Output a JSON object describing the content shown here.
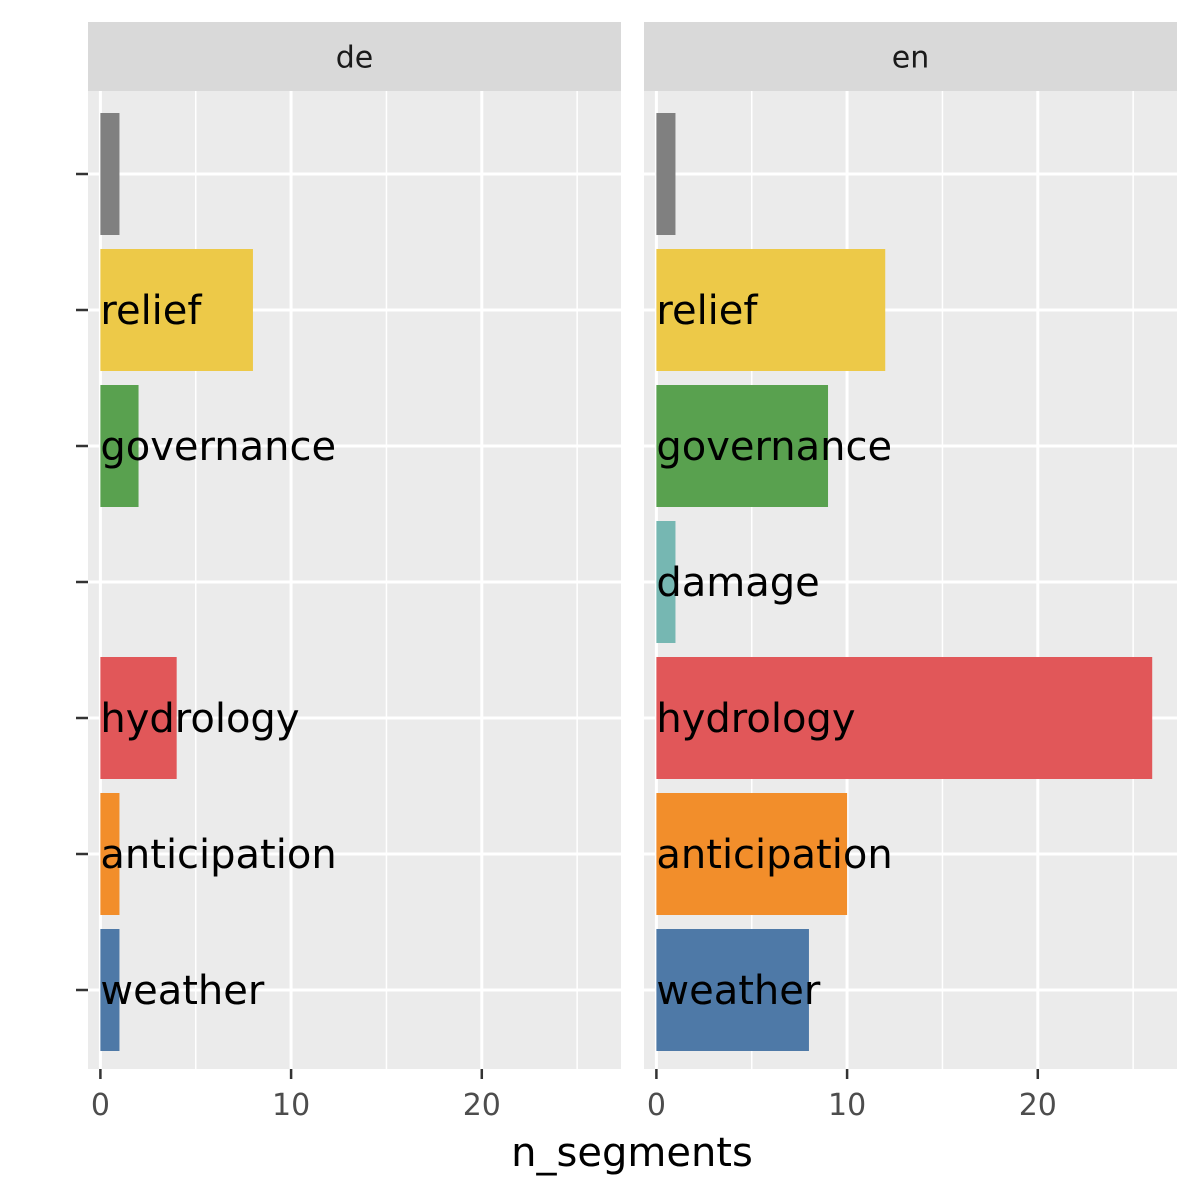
{
  "chart_data": {
    "type": "bar",
    "orientation": "horizontal",
    "xlabel": "n_segments",
    "ylabel": "",
    "xlim": [
      -0.65,
      27.3
    ],
    "x_ticks": [
      0,
      10,
      20
    ],
    "x_tick_labels": [
      "0",
      "10",
      "20"
    ],
    "grid": true,
    "legend": "none",
    "categories": [
      "",
      "relief",
      "governance",
      "damage",
      "hydrology",
      "anticipation",
      "weather"
    ],
    "category_colors": [
      "#808080",
      "#edc948",
      "#59a14f",
      "#76b7b2",
      "#e15759",
      "#f28e2b",
      "#4e79a7"
    ],
    "panels": [
      {
        "name": "de",
        "values": [
          1,
          8,
          2,
          null,
          4,
          1,
          1
        ],
        "labels": [
          "",
          "relief",
          "governance",
          "",
          "hydrology",
          "anticipation",
          "weather"
        ]
      },
      {
        "name": "en",
        "values": [
          1,
          12,
          9,
          1,
          26,
          10,
          8
        ],
        "labels": [
          "",
          "relief",
          "governance",
          "damage",
          "hydrology",
          "anticipation",
          "weather"
        ]
      }
    ]
  }
}
